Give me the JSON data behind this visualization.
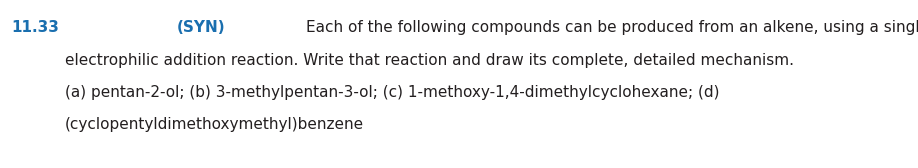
{
  "problem_number": "11.33",
  "syn_label": "(SYN)",
  "line1_rest": "Each of the following compounds can be produced from an alkene, using a single",
  "line2": "electrophilic addition reaction. Write that reaction and draw its complete, detailed mechanism.",
  "line3": "(a) pentan-2-ol; (b) 3-methylpentan-3-ol; (c) 1-methoxy-1,4-dimethylcyclohexane; (d)",
  "line4": "(cyclopentyldimethoxymethyl)benzene",
  "number_color": "#1a6faf",
  "syn_color": "#1a6faf",
  "text_color": "#231f20",
  "background_color": "#ffffff",
  "font_size": 11.0,
  "fig_width": 9.18,
  "fig_height": 1.68,
  "dpi": 100
}
